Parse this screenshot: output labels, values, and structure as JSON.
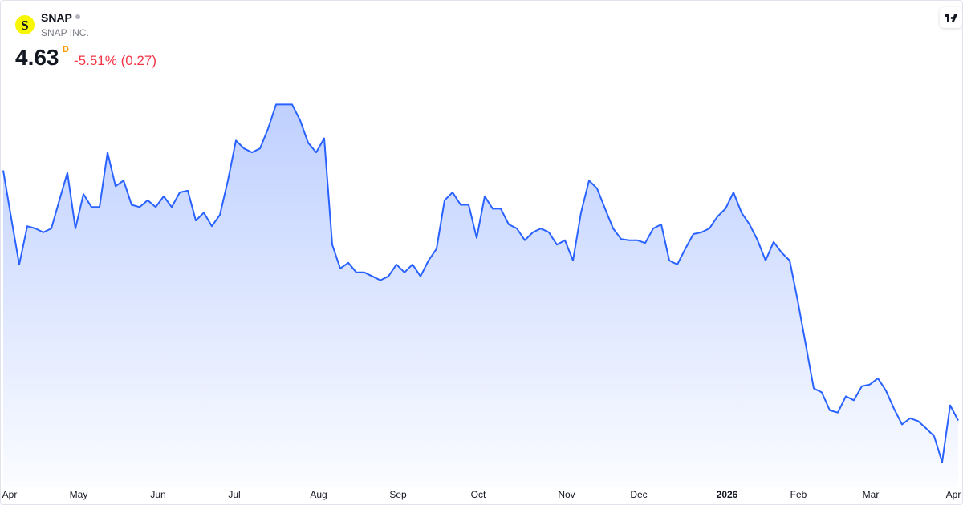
{
  "header": {
    "logo": "S",
    "symbol": "SNAP",
    "name": "SNAP INC.",
    "price": "4.63",
    "interval": "D",
    "change": "-5.51% (0.27)"
  },
  "chart_data": {
    "type": "area",
    "color": "#2962ff",
    "values": [
      9.07,
      8.22,
      7.4,
      8.08,
      8.04,
      7.97,
      8.04,
      8.54,
      9.03,
      8.04,
      8.65,
      8.42,
      8.42,
      9.39,
      8.79,
      8.89,
      8.46,
      8.42,
      8.54,
      8.42,
      8.61,
      8.42,
      8.68,
      8.71,
      8.18,
      8.32,
      8.08,
      8.28,
      8.89,
      9.6,
      9.46,
      9.39,
      9.46,
      9.81,
      10.24,
      10.24,
      10.24,
      9.96,
      9.56,
      9.39,
      9.64,
      7.75,
      7.33,
      7.43,
      7.26,
      7.26,
      7.19,
      7.12,
      7.19,
      7.4,
      7.26,
      7.4,
      7.19,
      7.47,
      7.68,
      8.54,
      8.68,
      8.46,
      8.46,
      7.87,
      8.61,
      8.39,
      8.39,
      8.11,
      8.04,
      7.83,
      7.97,
      8.04,
      7.97,
      7.75,
      7.83,
      7.47,
      8.32,
      8.89,
      8.75,
      8.39,
      8.04,
      7.85,
      7.83,
      7.83,
      7.78,
      8.04,
      8.11,
      7.47,
      7.4,
      7.68,
      7.94,
      7.97,
      8.04,
      8.25,
      8.39,
      8.68,
      8.32,
      8.11,
      7.83,
      7.47,
      7.8,
      7.61,
      7.47,
      6.76,
      5.98,
      5.2,
      5.13,
      4.81,
      4.77,
      5.06,
      4.99,
      5.24,
      5.27,
      5.38,
      5.16,
      4.84,
      4.56,
      4.67,
      4.62,
      4.49,
      4.35,
      3.89,
      4.9,
      4.63
    ],
    "xlim": [
      0,
      119
    ],
    "ylim": [
      3.4,
      10.9
    ],
    "xticks": [
      {
        "value": 0.8,
        "label": "Apr"
      },
      {
        "value": 9.4,
        "label": "May"
      },
      {
        "value": 19.3,
        "label": "Jun"
      },
      {
        "value": 28.8,
        "label": "Jul"
      },
      {
        "value": 39.3,
        "label": "Aug"
      },
      {
        "value": 49.2,
        "label": "Sep"
      },
      {
        "value": 59.2,
        "label": "Oct"
      },
      {
        "value": 70.2,
        "label": "Nov"
      },
      {
        "value": 79.2,
        "label": "Dec"
      },
      {
        "value": 90.2,
        "label": "2026"
      },
      {
        "value": 99.1,
        "label": "Feb"
      },
      {
        "value": 108.1,
        "label": "Mar"
      },
      {
        "value": 118.4,
        "label": "Apr"
      }
    ]
  }
}
